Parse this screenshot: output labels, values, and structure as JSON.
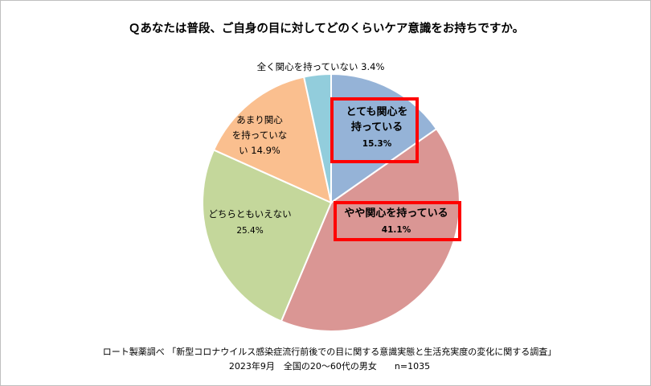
{
  "chart_data": {
    "type": "pie",
    "title": "Ｑあなたは普段、ご自身の目に対してどのくらいケア意識をお持ちですか。",
    "slices": [
      {
        "label_lines": [
          "とても関心を",
          "持っている"
        ],
        "value_label": "15.3%",
        "value": 15.3,
        "color": "#95b3d7",
        "highlight": true
      },
      {
        "label_lines": [
          "やや関心を持っている"
        ],
        "value_label": "41.1%",
        "value": 41.1,
        "color": "#da9694",
        "highlight": true
      },
      {
        "label_lines": [
          "どちらともいえない"
        ],
        "value_label": "25.4%",
        "value": 25.4,
        "color": "#c4d79b",
        "highlight": false
      },
      {
        "label_lines": [
          "あまり関心",
          "を持っていな",
          "い"
        ],
        "value_label": "14.9%",
        "value": 14.9,
        "color": "#fabf8f",
        "highlight": false
      },
      {
        "label_lines": [
          "全く関心を持っていない"
        ],
        "value_label": "3.4%",
        "value": 3.4,
        "color": "#92cddc",
        "highlight": false
      }
    ],
    "highlight_color": "#ff0000",
    "source_line1": "ロート製薬調べ 「新型コロナウイルス感染症流行前後での目に関する意識実態と生活充実度の変化に関する調査」",
    "source_line2": "2023年9月　全国の20～60代の男女　　n=1035"
  }
}
